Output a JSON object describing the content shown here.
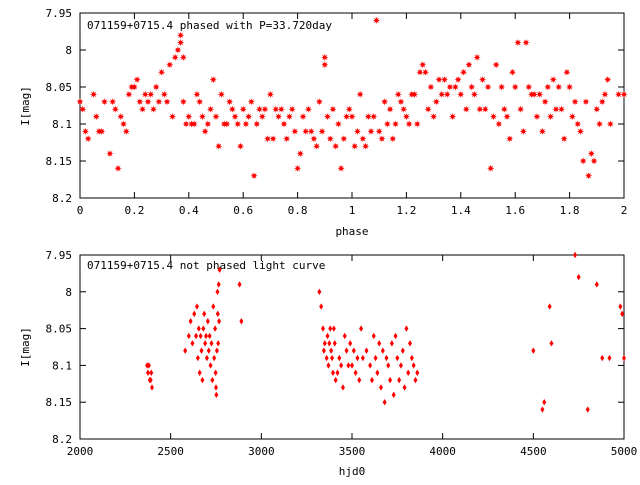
{
  "chart_data": [
    {
      "type": "scatter",
      "title": "071159+0715.4 phased with P=33.720day",
      "xlabel": "phase",
      "ylabel": "I[mag]",
      "xlim": [
        0,
        2
      ],
      "ylim": [
        8.2,
        7.95
      ],
      "y_inverted": true,
      "xticks": [
        "0",
        "0.2",
        "0.4",
        "0.6",
        "0.8",
        "1",
        "1.2",
        "1.4",
        "1.6",
        "1.8",
        "2"
      ],
      "yticks": [
        "7.95",
        "8",
        "8.05",
        "8.1",
        "8.15",
        "8.2"
      ],
      "grid": false,
      "marker": "star",
      "color": "#ff0000",
      "points": [
        [
          0.0,
          8.07
        ],
        [
          0.01,
          8.08
        ],
        [
          0.02,
          8.11
        ],
        [
          0.03,
          8.12
        ],
        [
          0.05,
          8.06
        ],
        [
          0.06,
          8.09
        ],
        [
          0.07,
          8.11
        ],
        [
          0.08,
          8.11
        ],
        [
          0.09,
          8.07
        ],
        [
          0.11,
          8.14
        ],
        [
          0.12,
          8.07
        ],
        [
          0.13,
          8.08
        ],
        [
          0.14,
          8.16
        ],
        [
          0.15,
          8.09
        ],
        [
          0.16,
          8.1
        ],
        [
          0.17,
          8.11
        ],
        [
          0.18,
          8.06
        ],
        [
          0.19,
          8.05
        ],
        [
          0.2,
          8.05
        ],
        [
          0.21,
          8.04
        ],
        [
          0.22,
          8.07
        ],
        [
          0.23,
          8.08
        ],
        [
          0.24,
          8.06
        ],
        [
          0.25,
          8.07
        ],
        [
          0.26,
          8.06
        ],
        [
          0.27,
          8.08
        ],
        [
          0.28,
          8.05
        ],
        [
          0.29,
          8.07
        ],
        [
          0.3,
          8.03
        ],
        [
          0.31,
          8.06
        ],
        [
          0.32,
          8.07
        ],
        [
          0.33,
          8.02
        ],
        [
          0.34,
          8.09
        ],
        [
          0.35,
          8.01
        ],
        [
          0.36,
          8.0
        ],
        [
          0.37,
          7.98
        ],
        [
          0.37,
          7.99
        ],
        [
          0.38,
          8.01
        ],
        [
          0.38,
          8.07
        ],
        [
          0.39,
          8.1
        ],
        [
          0.4,
          8.09
        ],
        [
          0.41,
          8.1
        ],
        [
          0.42,
          8.1
        ],
        [
          0.43,
          8.06
        ],
        [
          0.44,
          8.07
        ],
        [
          0.45,
          8.09
        ],
        [
          0.46,
          8.11
        ],
        [
          0.47,
          8.1
        ],
        [
          0.48,
          8.08
        ],
        [
          0.49,
          8.04
        ],
        [
          0.5,
          8.09
        ],
        [
          0.51,
          8.13
        ],
        [
          0.52,
          8.06
        ],
        [
          0.53,
          8.1
        ],
        [
          0.54,
          8.1
        ],
        [
          0.55,
          8.07
        ],
        [
          0.56,
          8.08
        ],
        [
          0.57,
          8.09
        ],
        [
          0.58,
          8.1
        ],
        [
          0.59,
          8.13
        ],
        [
          0.6,
          8.08
        ],
        [
          0.61,
          8.1
        ],
        [
          0.62,
          8.09
        ],
        [
          0.63,
          8.07
        ],
        [
          0.64,
          8.17
        ],
        [
          0.65,
          8.1
        ],
        [
          0.66,
          8.08
        ],
        [
          0.67,
          8.09
        ],
        [
          0.68,
          8.08
        ],
        [
          0.69,
          8.12
        ],
        [
          0.7,
          8.06
        ],
        [
          0.71,
          8.12
        ],
        [
          0.72,
          8.08
        ],
        [
          0.73,
          8.09
        ],
        [
          0.74,
          8.08
        ],
        [
          0.75,
          8.1
        ],
        [
          0.76,
          8.12
        ],
        [
          0.77,
          8.09
        ],
        [
          0.78,
          8.08
        ],
        [
          0.79,
          8.11
        ],
        [
          0.8,
          8.16
        ],
        [
          0.81,
          8.14
        ],
        [
          0.82,
          8.09
        ],
        [
          0.83,
          8.11
        ],
        [
          0.84,
          8.08
        ],
        [
          0.85,
          8.11
        ],
        [
          0.86,
          8.12
        ],
        [
          0.87,
          8.13
        ],
        [
          0.88,
          8.07
        ],
        [
          0.89,
          8.11
        ],
        [
          0.9,
          8.02
        ],
        [
          0.9,
          8.01
        ],
        [
          0.91,
          8.09
        ],
        [
          0.92,
          8.12
        ],
        [
          0.93,
          8.08
        ],
        [
          0.94,
          8.13
        ],
        [
          0.95,
          8.1
        ],
        [
          0.96,
          8.16
        ],
        [
          0.97,
          8.12
        ],
        [
          0.98,
          8.09
        ],
        [
          0.99,
          8.08
        ],
        [
          1.0,
          8.09
        ],
        [
          1.01,
          8.13
        ],
        [
          1.02,
          8.11
        ],
        [
          1.03,
          8.06
        ],
        [
          1.04,
          8.12
        ],
        [
          1.05,
          8.13
        ],
        [
          1.06,
          8.09
        ],
        [
          1.07,
          8.11
        ],
        [
          1.08,
          8.09
        ],
        [
          1.09,
          7.96
        ],
        [
          1.1,
          8.11
        ],
        [
          1.11,
          8.12
        ],
        [
          1.12,
          8.07
        ],
        [
          1.13,
          8.1
        ],
        [
          1.14,
          8.08
        ],
        [
          1.15,
          8.12
        ],
        [
          1.16,
          8.1
        ],
        [
          1.17,
          8.06
        ],
        [
          1.18,
          8.07
        ],
        [
          1.19,
          8.08
        ],
        [
          1.2,
          8.09
        ],
        [
          1.21,
          8.1
        ],
        [
          1.22,
          8.06
        ],
        [
          1.23,
          8.06
        ],
        [
          1.24,
          8.1
        ],
        [
          1.25,
          8.03
        ],
        [
          1.26,
          8.02
        ],
        [
          1.27,
          8.03
        ],
        [
          1.28,
          8.08
        ],
        [
          1.29,
          8.05
        ],
        [
          1.3,
          8.09
        ],
        [
          1.31,
          8.07
        ],
        [
          1.32,
          8.04
        ],
        [
          1.33,
          8.06
        ],
        [
          1.34,
          8.04
        ],
        [
          1.35,
          8.06
        ],
        [
          1.36,
          8.05
        ],
        [
          1.37,
          8.09
        ],
        [
          1.38,
          8.05
        ],
        [
          1.39,
          8.04
        ],
        [
          1.4,
          8.06
        ],
        [
          1.41,
          8.03
        ],
        [
          1.42,
          8.08
        ],
        [
          1.43,
          8.02
        ],
        [
          1.44,
          8.05
        ],
        [
          1.45,
          8.06
        ],
        [
          1.46,
          8.01
        ],
        [
          1.47,
          8.08
        ],
        [
          1.48,
          8.04
        ],
        [
          1.49,
          8.08
        ],
        [
          1.5,
          8.05
        ],
        [
          1.51,
          8.16
        ],
        [
          1.52,
          8.09
        ],
        [
          1.53,
          8.02
        ],
        [
          1.54,
          8.1
        ],
        [
          1.55,
          8.05
        ],
        [
          1.56,
          8.08
        ],
        [
          1.57,
          8.09
        ],
        [
          1.58,
          8.12
        ],
        [
          1.59,
          8.03
        ],
        [
          1.6,
          8.05
        ],
        [
          1.61,
          7.99
        ],
        [
          1.62,
          8.08
        ],
        [
          1.63,
          8.11
        ],
        [
          1.64,
          7.99
        ],
        [
          1.65,
          8.05
        ],
        [
          1.66,
          8.06
        ],
        [
          1.67,
          8.06
        ],
        [
          1.68,
          8.09
        ],
        [
          1.69,
          8.06
        ],
        [
          1.7,
          8.11
        ],
        [
          1.71,
          8.07
        ],
        [
          1.72,
          8.05
        ],
        [
          1.73,
          8.09
        ],
        [
          1.74,
          8.04
        ],
        [
          1.75,
          8.08
        ],
        [
          1.76,
          8.05
        ],
        [
          1.77,
          8.08
        ],
        [
          1.78,
          8.12
        ],
        [
          1.79,
          8.03
        ],
        [
          1.8,
          8.05
        ],
        [
          1.81,
          8.09
        ],
        [
          1.82,
          8.07
        ],
        [
          1.83,
          8.1
        ],
        [
          1.84,
          8.11
        ],
        [
          1.85,
          8.15
        ],
        [
          1.86,
          8.07
        ],
        [
          1.87,
          8.17
        ],
        [
          1.88,
          8.14
        ],
        [
          1.89,
          8.15
        ],
        [
          1.9,
          8.08
        ],
        [
          1.91,
          8.1
        ],
        [
          1.92,
          8.07
        ],
        [
          1.93,
          8.06
        ],
        [
          1.94,
          8.04
        ],
        [
          1.95,
          8.1
        ],
        [
          1.98,
          8.06
        ],
        [
          2.0,
          8.06
        ]
      ]
    },
    {
      "type": "scatter",
      "title": "071159+0715.4 not phased light curve",
      "xlabel": "hjd0",
      "ylabel": "I[mag]",
      "xlim": [
        2000,
        5000
      ],
      "ylim": [
        8.2,
        7.95
      ],
      "y_inverted": true,
      "xticks": [
        "2000",
        "2500",
        "3000",
        "3500",
        "4000",
        "4500",
        "5000"
      ],
      "yticks": [
        "7.95",
        "8",
        "8.05",
        "8.1",
        "8.15",
        "8.2"
      ],
      "grid": false,
      "marker": "diamond",
      "color": "#ff0000",
      "points": [
        [
          2370,
          8.1
        ],
        [
          2375,
          8.11
        ],
        [
          2380,
          8.1
        ],
        [
          2385,
          8.12
        ],
        [
          2390,
          8.12
        ],
        [
          2393,
          8.11
        ],
        [
          2397,
          8.13
        ],
        [
          2580,
          8.08
        ],
        [
          2600,
          8.06
        ],
        [
          2610,
          8.04
        ],
        [
          2620,
          8.07
        ],
        [
          2630,
          8.03
        ],
        [
          2640,
          8.06
        ],
        [
          2645,
          8.02
        ],
        [
          2650,
          8.09
        ],
        [
          2655,
          8.05
        ],
        [
          2660,
          8.11
        ],
        [
          2665,
          8.06
        ],
        [
          2670,
          8.08
        ],
        [
          2675,
          8.12
        ],
        [
          2680,
          8.05
        ],
        [
          2685,
          8.03
        ],
        [
          2690,
          8.07
        ],
        [
          2695,
          8.06
        ],
        [
          2700,
          8.09
        ],
        [
          2705,
          8.04
        ],
        [
          2710,
          8.08
        ],
        [
          2715,
          8.06
        ],
        [
          2720,
          8.1
        ],
        [
          2725,
          8.07
        ],
        [
          2730,
          8.12
        ],
        [
          2735,
          8.02
        ],
        [
          2740,
          8.09
        ],
        [
          2745,
          8.05
        ],
        [
          2748,
          8.11
        ],
        [
          2750,
          8.13
        ],
        [
          2752,
          8.14
        ],
        [
          2755,
          8.08
        ],
        [
          2758,
          8.0
        ],
        [
          2760,
          8.03
        ],
        [
          2762,
          8.07
        ],
        [
          2765,
          7.99
        ],
        [
          2767,
          8.04
        ],
        [
          2770,
          7.97
        ],
        [
          2880,
          7.99
        ],
        [
          2890,
          8.04
        ],
        [
          3320,
          8.0
        ],
        [
          3330,
          8.02
        ],
        [
          3340,
          8.05
        ],
        [
          3345,
          8.08
        ],
        [
          3350,
          8.07
        ],
        [
          3360,
          8.09
        ],
        [
          3365,
          8.06
        ],
        [
          3370,
          8.1
        ],
        [
          3375,
          8.07
        ],
        [
          3380,
          8.05
        ],
        [
          3385,
          8.08
        ],
        [
          3390,
          8.09
        ],
        [
          3395,
          8.11
        ],
        [
          3400,
          8.05
        ],
        [
          3405,
          8.07
        ],
        [
          3410,
          8.12
        ],
        [
          3420,
          8.11
        ],
        [
          3430,
          8.09
        ],
        [
          3440,
          8.1
        ],
        [
          3450,
          8.13
        ],
        [
          3460,
          8.06
        ],
        [
          3470,
          8.08
        ],
        [
          3480,
          8.1
        ],
        [
          3490,
          8.07
        ],
        [
          3500,
          8.1
        ],
        [
          3510,
          8.08
        ],
        [
          3520,
          8.11
        ],
        [
          3530,
          8.09
        ],
        [
          3540,
          8.12
        ],
        [
          3550,
          8.05
        ],
        [
          3560,
          8.09
        ],
        [
          3580,
          8.08
        ],
        [
          3600,
          8.1
        ],
        [
          3610,
          8.12
        ],
        [
          3620,
          8.06
        ],
        [
          3630,
          8.09
        ],
        [
          3640,
          8.11
        ],
        [
          3650,
          8.07
        ],
        [
          3660,
          8.13
        ],
        [
          3670,
          8.08
        ],
        [
          3680,
          8.15
        ],
        [
          3690,
          8.09
        ],
        [
          3700,
          8.1
        ],
        [
          3710,
          8.12
        ],
        [
          3720,
          8.07
        ],
        [
          3730,
          8.14
        ],
        [
          3740,
          8.06
        ],
        [
          3750,
          8.09
        ],
        [
          3760,
          8.12
        ],
        [
          3770,
          8.1
        ],
        [
          3780,
          8.08
        ],
        [
          3790,
          8.13
        ],
        [
          3800,
          8.05
        ],
        [
          3810,
          8.11
        ],
        [
          3820,
          8.07
        ],
        [
          3830,
          8.09
        ],
        [
          3840,
          8.1
        ],
        [
          3850,
          8.12
        ],
        [
          3860,
          8.11
        ],
        [
          4500,
          8.08
        ],
        [
          4550,
          8.16
        ],
        [
          4560,
          8.15
        ],
        [
          4590,
          8.02
        ],
        [
          4600,
          8.07
        ],
        [
          4730,
          7.95
        ],
        [
          4750,
          7.98
        ],
        [
          4800,
          8.16
        ],
        [
          4850,
          7.99
        ],
        [
          4880,
          8.09
        ],
        [
          4920,
          8.09
        ],
        [
          4980,
          8.02
        ],
        [
          4990,
          8.03
        ],
        [
          5000,
          8.09
        ]
      ]
    }
  ]
}
